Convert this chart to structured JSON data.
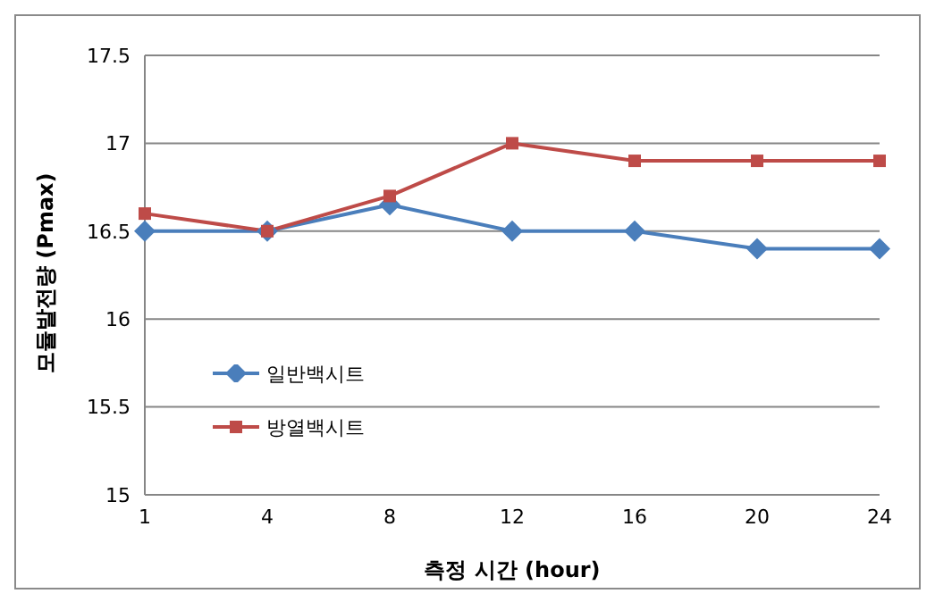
{
  "chart_data": {
    "type": "line",
    "xlabel": "측정 시간 (hour)",
    "ylabel": "모듈발전량 (Pmax)",
    "categories": [
      "1",
      "4",
      "8",
      "12",
      "16",
      "20",
      "24"
    ],
    "series": [
      {
        "name": "일반백시트",
        "color": "#4a7ebb",
        "marker": "diamond",
        "values": [
          16.5,
          16.5,
          16.65,
          16.5,
          16.5,
          16.4,
          16.4
        ]
      },
      {
        "name": "방열백시트",
        "color": "#be4b48",
        "marker": "square",
        "values": [
          16.6,
          16.5,
          16.7,
          17.0,
          16.9,
          16.9,
          16.9
        ]
      }
    ],
    "ylim": [
      15,
      17.5
    ],
    "yticks": [
      15,
      15.5,
      16,
      16.5,
      17,
      17.5
    ],
    "grid": "y",
    "legend": "left"
  }
}
